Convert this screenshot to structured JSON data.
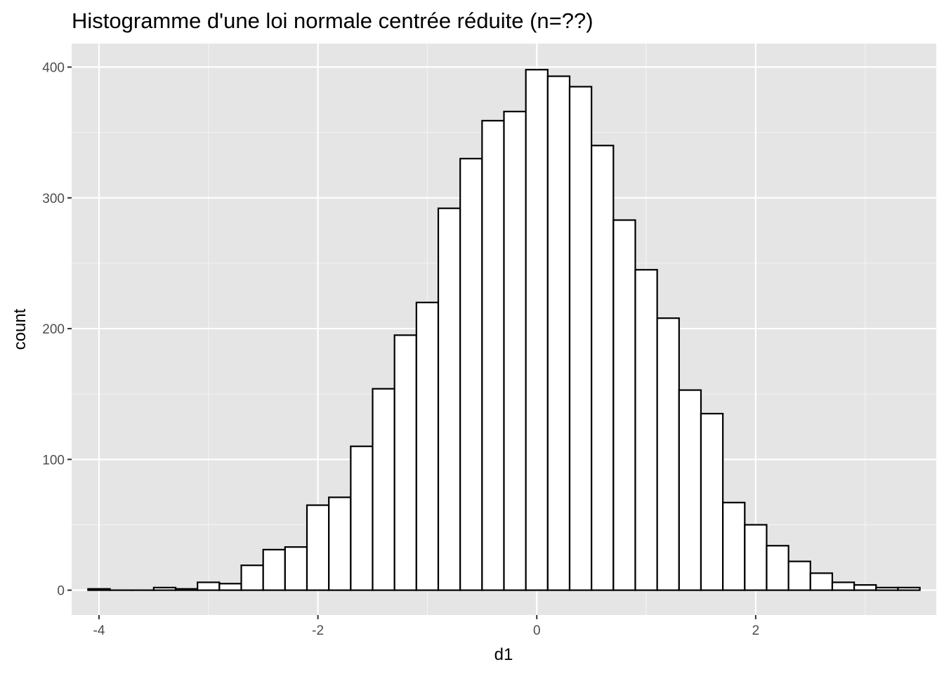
{
  "chart_data": {
    "type": "bar",
    "subtype": "histogram",
    "title": "Histogramme d'une loi normale centrée réduite (n=??)",
    "xlabel": "d1",
    "ylabel": "count",
    "xlim": [
      -4.25,
      3.65
    ],
    "ylim": [
      -19,
      418
    ],
    "x_ticks": [
      -4,
      -2,
      0,
      2
    ],
    "x_tick_labels": [
      "-4",
      "-2",
      "0",
      "2"
    ],
    "y_ticks": [
      0,
      100,
      200,
      300,
      400
    ],
    "y_tick_labels": [
      "0",
      "100",
      "200",
      "300",
      "400"
    ],
    "bin_width": 0.2,
    "bin_centers": [
      -4.0,
      -3.8,
      -3.6,
      -3.4,
      -3.2,
      -3.0,
      -2.8,
      -2.6,
      -2.4,
      -2.2,
      -2.0,
      -1.8,
      -1.6,
      -1.4,
      -1.2,
      -1.0,
      -0.8,
      -0.6,
      -0.4,
      -0.2,
      0.0,
      0.2,
      0.4,
      0.6,
      0.8,
      1.0,
      1.2,
      1.4,
      1.6,
      1.8,
      2.0,
      2.2,
      2.4,
      2.6,
      2.8,
      3.0,
      3.2,
      3.4
    ],
    "counts": [
      1,
      0,
      0,
      2,
      1,
      6,
      5,
      19,
      31,
      33,
      65,
      71,
      110,
      154,
      195,
      220,
      292,
      330,
      359,
      366,
      398,
      393,
      385,
      340,
      283,
      245,
      208,
      153,
      135,
      67,
      50,
      34,
      22,
      13,
      6,
      4,
      2,
      2
    ],
    "grid": true,
    "legend": "none",
    "colors": {
      "panel_background": "#e5e5e5",
      "grid_major": "#ffffff",
      "grid_minor": "#f2f2f2",
      "bar_fill": "#ffffff",
      "bar_outline": "#000000",
      "tick_text": "#4d4d4d",
      "tick_mark": "#333333"
    }
  }
}
